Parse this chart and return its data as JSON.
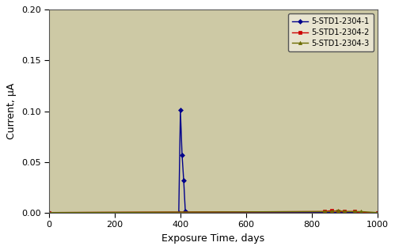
{
  "title": "",
  "xlabel": "Exposure Time, days",
  "ylabel": "Current, μA",
  "xlim": [
    0,
    1000
  ],
  "ylim": [
    0,
    0.2
  ],
  "yticks": [
    0.0,
    0.05,
    0.1,
    0.15,
    0.2
  ],
  "xticks": [
    0,
    200,
    400,
    600,
    800,
    1000
  ],
  "background_color": "#cdc9a5",
  "series": [
    {
      "label": "5-STD1-2304-1",
      "color": "#00008B",
      "marker": "D",
      "markersize": 3,
      "x": [
        0,
        395,
        400,
        405,
        410,
        415,
        420,
        1000
      ],
      "y": [
        0.0,
        0.0,
        0.101,
        0.057,
        0.032,
        0.001,
        0.0,
        0.0
      ]
    },
    {
      "label": "5-STD1-2304-2",
      "color": "#CC0000",
      "marker": "s",
      "markersize": 3,
      "x": [
        0,
        840,
        860,
        880,
        900,
        930,
        950,
        1000
      ],
      "y": [
        0.0,
        0.001,
        0.002,
        0.001,
        0.001,
        0.001,
        0.0,
        0.0
      ]
    },
    {
      "label": "5-STD1-2304-3",
      "color": "#6B6B00",
      "marker": "^",
      "markersize": 3,
      "x": [
        0,
        840,
        860,
        880,
        900,
        930,
        950,
        1000
      ],
      "y": [
        0.0,
        0.001,
        0.001,
        0.002,
        0.001,
        0.001,
        0.001,
        0.0
      ]
    }
  ],
  "legend_loc": "upper right",
  "legend_frameon": true,
  "linewidth": 1.0,
  "figure_bg": "#ffffff",
  "axes_bg": "#cdc9a5",
  "xlabel_fontsize": 9,
  "ylabel_fontsize": 9,
  "tick_fontsize": 8,
  "legend_fontsize": 7
}
